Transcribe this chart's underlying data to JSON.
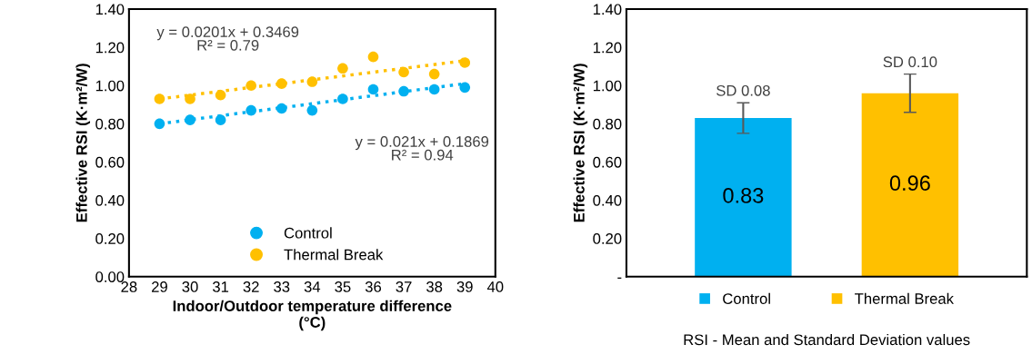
{
  "chart_data": [
    {
      "type": "scatter",
      "xlabel": "Indoor/Outdoor temperature difference\n(°C)",
      "ylabel": "Effective RSI (K·m²/W)",
      "xlim": [
        28,
        40
      ],
      "xticks": [
        28,
        29,
        30,
        31,
        32,
        33,
        34,
        35,
        36,
        37,
        38,
        39,
        40
      ],
      "ylim": [
        0,
        1.4
      ],
      "yticks": [
        {
          "value": 0,
          "label": "0.00"
        },
        {
          "value": 0.2,
          "label": "0.20"
        },
        {
          "value": 0.4,
          "label": "0.40"
        },
        {
          "value": 0.6,
          "label": "0.60"
        },
        {
          "value": 0.8,
          "label": "0.80"
        },
        {
          "value": 1.0,
          "label": "1.00"
        },
        {
          "value": 1.2,
          "label": "1.20"
        },
        {
          "value": 1.4,
          "label": "1.40"
        }
      ],
      "grid": false,
      "legend": "bottom",
      "marker": "circle",
      "series": [
        {
          "name": "Control",
          "color": "#00b0f0",
          "x": [
            29,
            30,
            31,
            32,
            33,
            34,
            35,
            36,
            37,
            38,
            39
          ],
          "values": [
            0.8,
            0.82,
            0.82,
            0.87,
            0.88,
            0.87,
            0.93,
            0.98,
            0.97,
            0.98,
            0.99
          ]
        },
        {
          "name": "Thermal Break",
          "color": "#ffc000",
          "x": [
            29,
            30,
            31,
            32,
            33,
            34,
            35,
            36,
            37,
            38,
            39
          ],
          "values": [
            0.93,
            0.93,
            0.95,
            1.0,
            1.01,
            1.02,
            1.09,
            1.15,
            1.07,
            1.06,
            1.12
          ]
        },
        {
          "type": "line",
          "color": "#00b0f0",
          "line_style": "dotted",
          "marker": "none",
          "x": [
            29,
            39
          ],
          "values": [
            0.8,
            1.01
          ]
        },
        {
          "type": "line",
          "color": "#ffc000",
          "line_style": "dotted",
          "marker": "none",
          "x": [
            29,
            39
          ],
          "values": [
            0.93,
            1.13
          ]
        }
      ],
      "annotations": [
        "y = 0.0201x + 0.3469",
        "R² = 0.79",
        "y = 0.021x + 0.1869",
        "R² = 0.94"
      ]
    },
    {
      "type": "bar",
      "xlabel": "RSI - Mean and Standard Deviation values",
      "ylabel": "Effective RSI (K·m²/W)",
      "categories": [
        null,
        null
      ],
      "series": [
        {
          "name": "Control",
          "color": "#00b0f0",
          "values": [
            0.83,
            null
          ],
          "errors": [
            0.08,
            null
          ]
        },
        {
          "name": "Thermal Break",
          "color": "#ffc000",
          "values": [
            null,
            0.96
          ],
          "errors": [
            null,
            0.1
          ]
        }
      ],
      "data_labels": true,
      "legend": "bottom",
      "grid": false,
      "ylim": [
        0,
        1.4
      ],
      "yticks": [
        {
          "value": 0,
          "label": "-"
        },
        {
          "value": 0.2,
          "label": "0.20"
        },
        {
          "value": 0.4,
          "label": "0.40"
        },
        {
          "value": 0.6,
          "label": "0.60"
        },
        {
          "value": 0.8,
          "label": "0.80"
        },
        {
          "value": 1.0,
          "label": "1.00"
        },
        {
          "value": 1.2,
          "label": "1.20"
        },
        {
          "value": 1.4,
          "label": "1.40"
        }
      ],
      "annotations": [
        "SD 0.08",
        "SD 0.10"
      ]
    }
  ]
}
